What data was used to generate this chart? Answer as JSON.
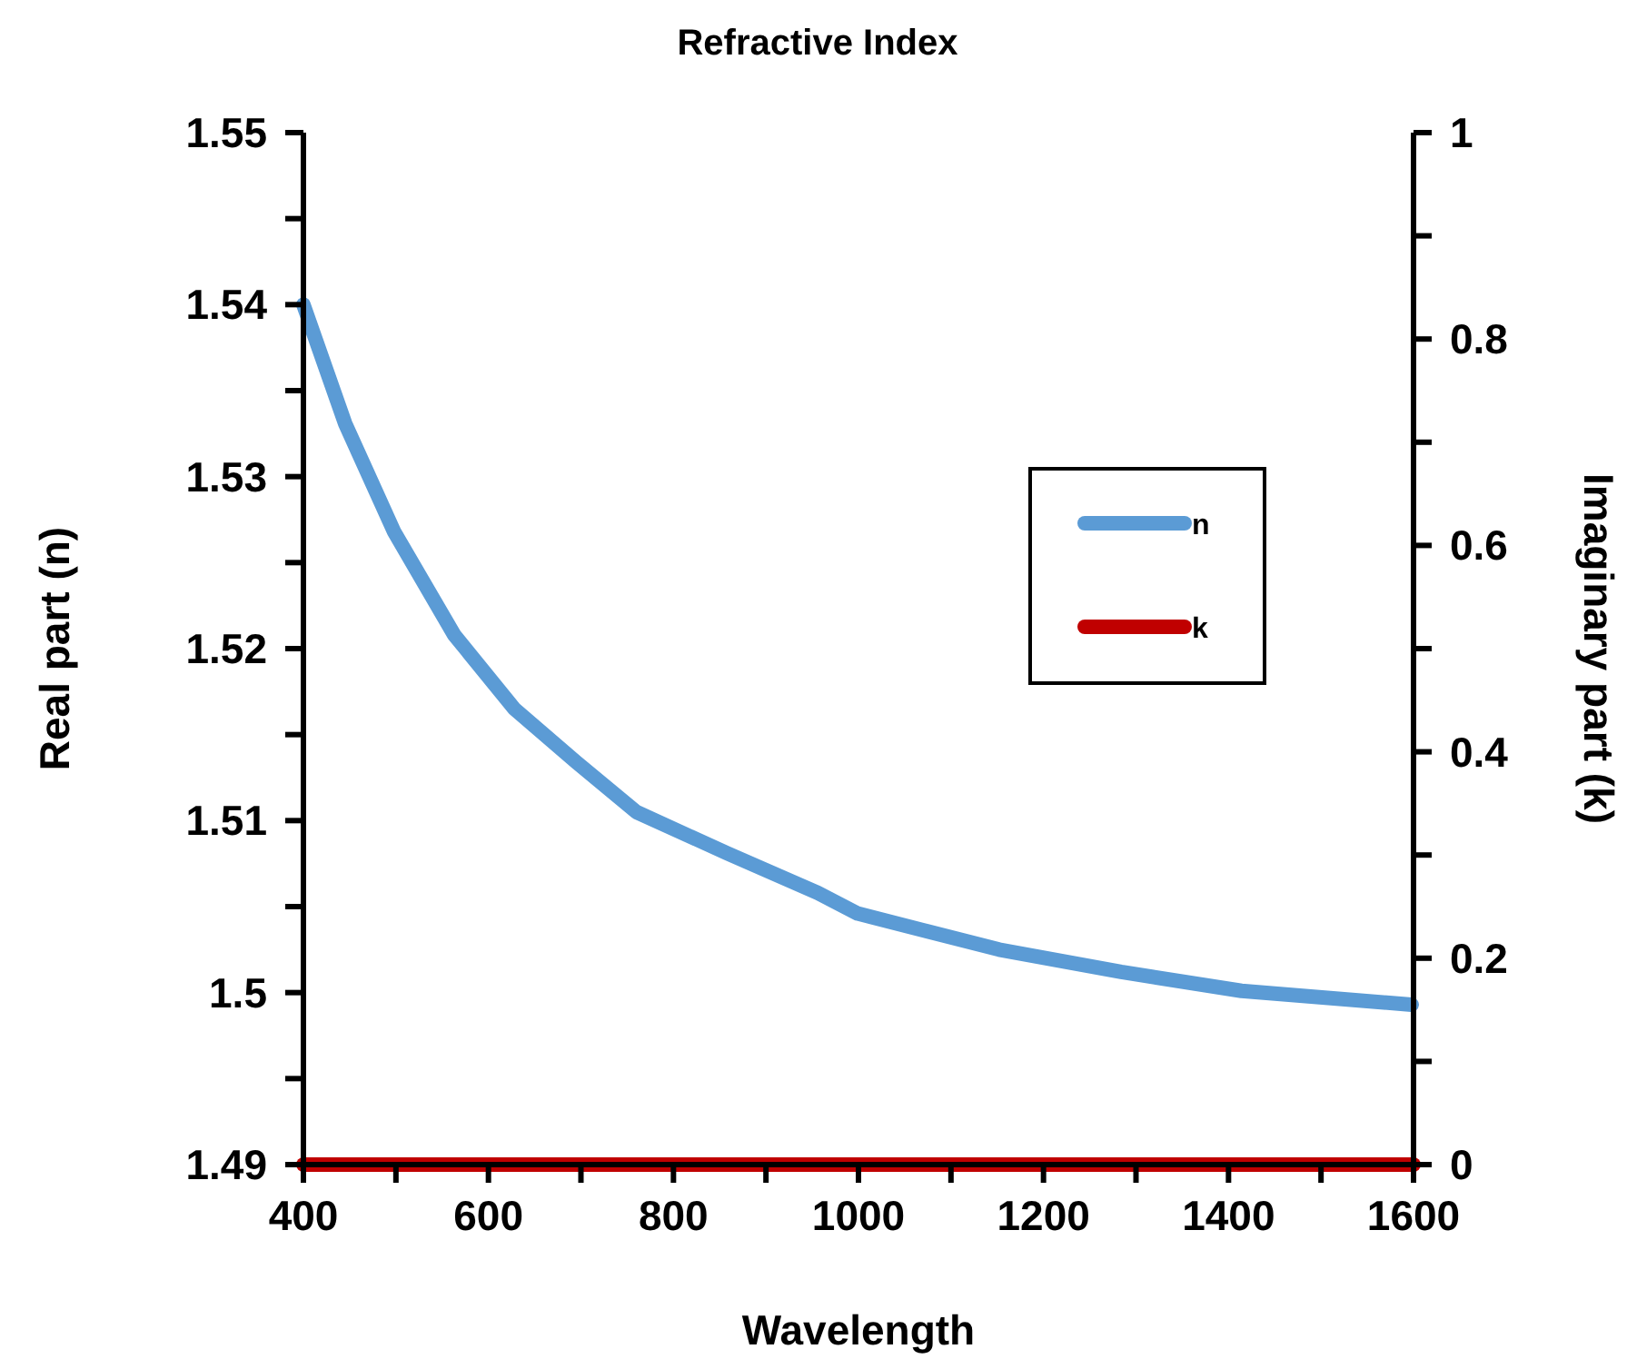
{
  "chart_data": {
    "type": "line",
    "title": "Refractive Index",
    "xlabel": "Wavelength",
    "ylabel": "Real part (n)",
    "y2label": "Imaginary part (k)",
    "xlim": [
      400,
      1600
    ],
    "xticks": [
      400,
      {
        "value": 500,
        "label": null
      },
      600,
      {
        "value": 700,
        "label": null
      },
      800,
      {
        "value": 900,
        "label": null
      },
      1000,
      {
        "value": 1100,
        "label": null
      },
      1200,
      {
        "value": 1300,
        "label": null
      },
      1400,
      {
        "value": 1500,
        "label": null
      },
      1600
    ],
    "ylim": [
      1.49,
      1.55
    ],
    "yticks": [
      1.49,
      {
        "value": 1.495,
        "label": null
      },
      1.5,
      {
        "value": 1.505,
        "label": null
      },
      1.51,
      {
        "value": 1.515,
        "label": null
      },
      1.52,
      {
        "value": 1.525,
        "label": null
      },
      1.53,
      {
        "value": 1.535,
        "label": null
      },
      1.54,
      {
        "value": 1.545,
        "label": null
      },
      1.55
    ],
    "y2lim": [
      0,
      1
    ],
    "y2ticks": [
      0,
      {
        "value": 0.1,
        "label": null
      },
      0.2,
      {
        "value": 0.3,
        "label": null
      },
      0.4,
      {
        "value": 0.5,
        "label": null
      },
      0.6,
      {
        "value": 0.7,
        "label": null
      },
      0.8,
      {
        "value": 0.9,
        "label": null
      },
      1
    ],
    "grid": false,
    "legend": "right",
    "line_style": "solid",
    "series": [
      {
        "name": "n",
        "color": "#5b9bd5",
        "x": [
          400,
          445,
          498,
          563,
          628,
          695,
          760,
          858,
          956,
          999,
          1152,
          1284,
          1414,
          1598
        ],
        "values": [
          1.54,
          1.5331,
          1.5268,
          1.5208,
          1.5165,
          1.5134,
          1.5105,
          1.5081,
          1.5058,
          1.5046,
          1.5025,
          1.5012,
          1.5001,
          1.4993
        ]
      },
      {
        "name": "k",
        "color": "#c00000",
        "axis": "y2",
        "x": [
          400,
          600,
          800,
          1000,
          1200,
          1400,
          1600
        ],
        "values": [
          0,
          0,
          0,
          0,
          0,
          0,
          0
        ]
      }
    ]
  }
}
